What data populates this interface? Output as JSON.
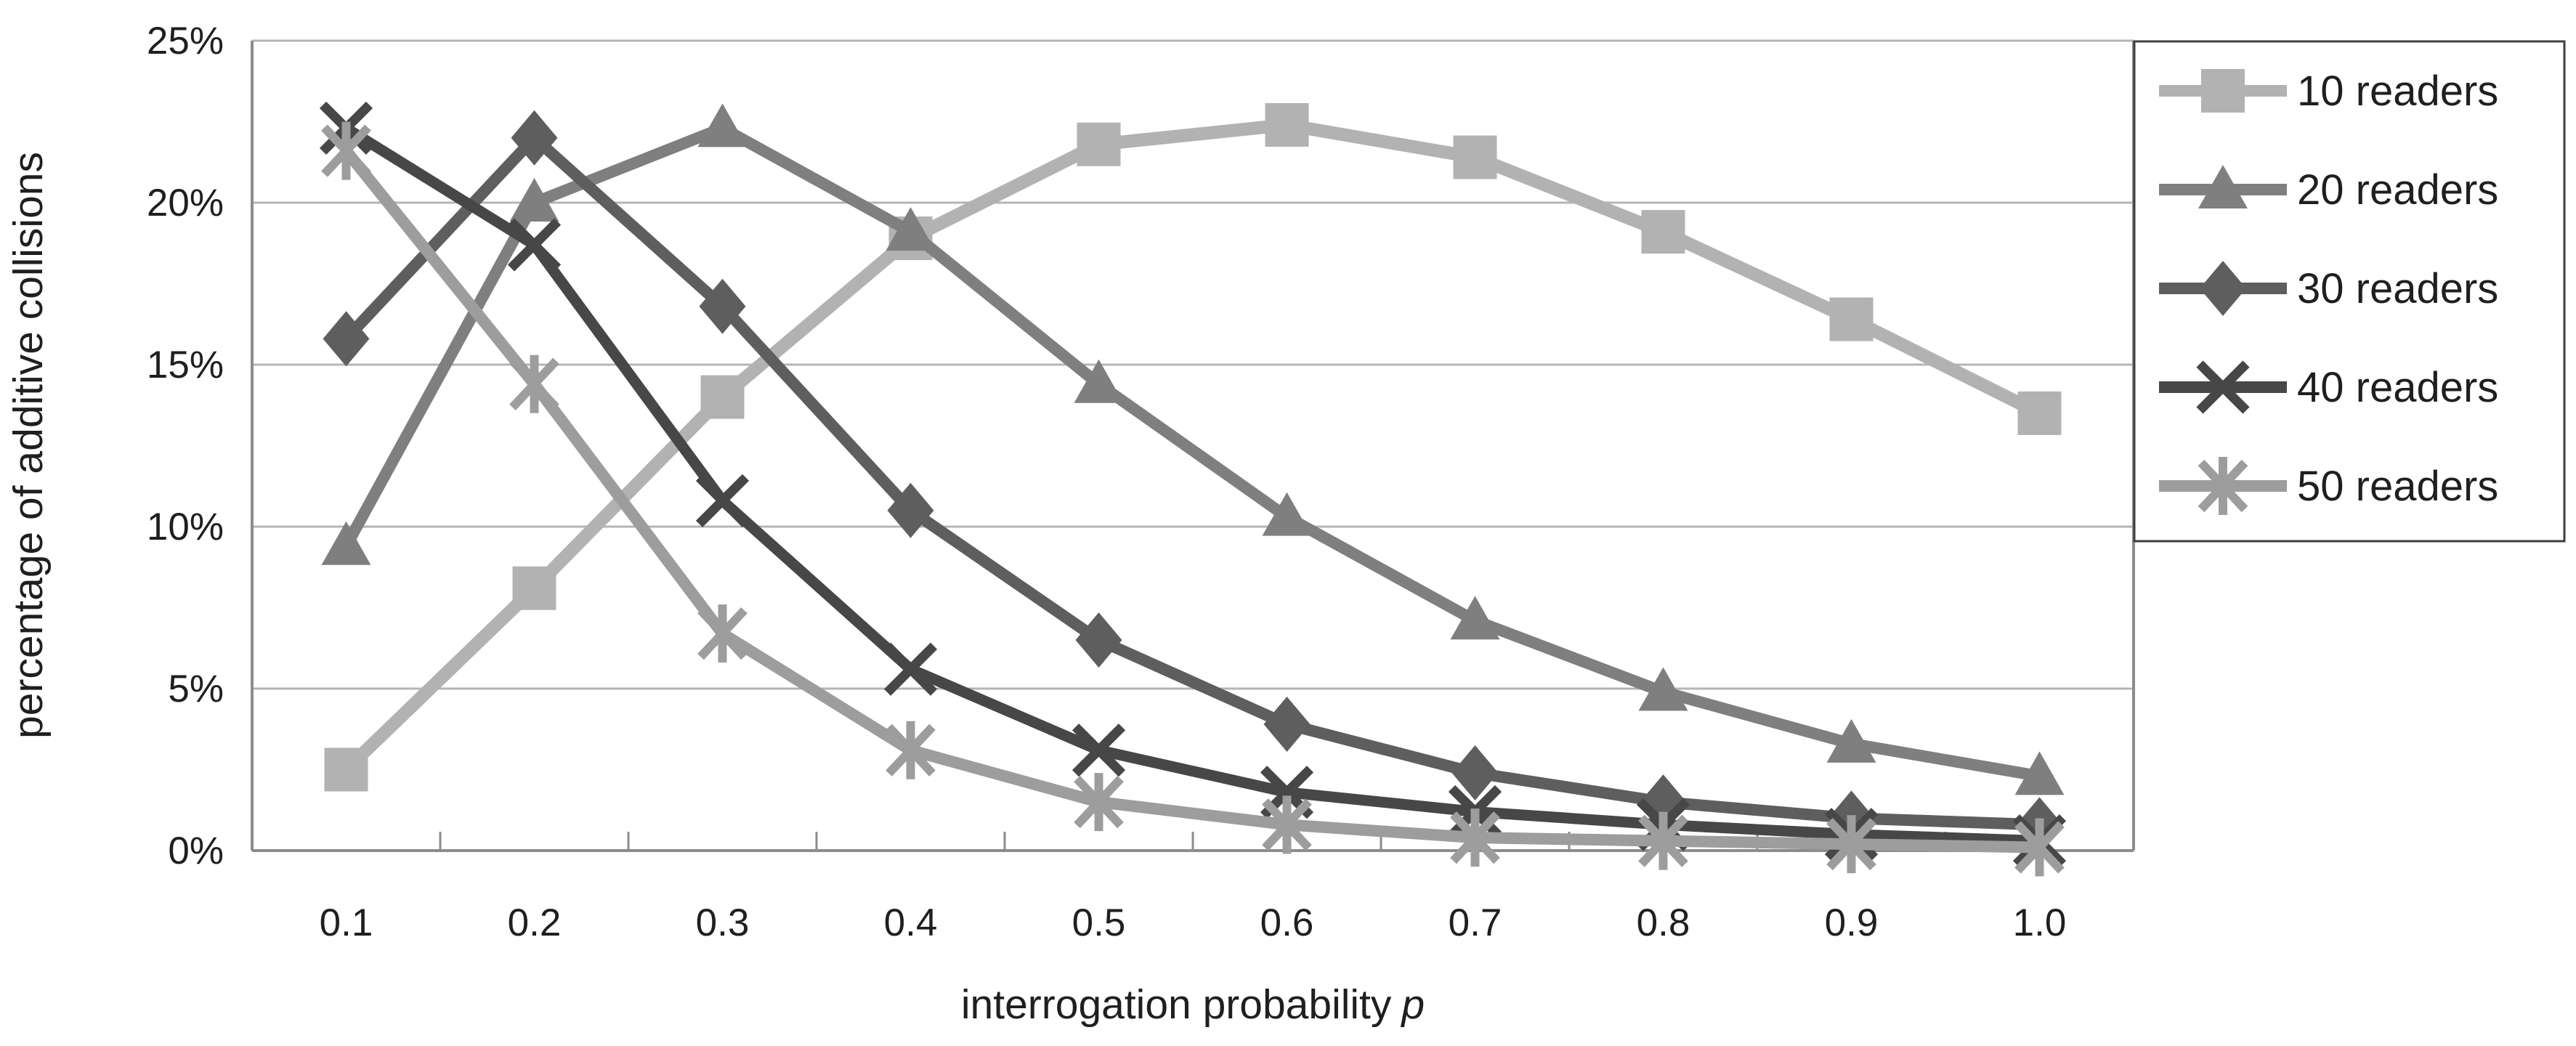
{
  "chart_data": {
    "type": "line",
    "title": "",
    "xlabel": "interrogation probability",
    "xlabel_italic_suffix": "p",
    "ylabel": "percentage of additive collisions",
    "categories": [
      0.1,
      0.2,
      0.3,
      0.4,
      0.5,
      0.6,
      0.7,
      0.8,
      0.9,
      1.0
    ],
    "x_tick_labels": [
      "0.1",
      "0.2",
      "0.3",
      "0.4",
      "0.5",
      "0.6",
      "0.7",
      "0.8",
      "0.9",
      "1.0"
    ],
    "y_ticks": [
      0,
      5,
      10,
      15,
      20,
      25
    ],
    "y_tick_labels": [
      "0%",
      "5%",
      "10%",
      "15%",
      "20%",
      "25%"
    ],
    "ylim": [
      0,
      25
    ],
    "grid": "horizontal",
    "legend_position": "right-top",
    "series": [
      {
        "name": "10 readers",
        "marker": "square",
        "color": "#b2b2b2",
        "line_width": 18,
        "values": [
          2.5,
          8.1,
          14.0,
          18.9,
          21.8,
          22.4,
          21.4,
          19.1,
          16.4,
          13.5
        ]
      },
      {
        "name": "20 readers",
        "marker": "triangle",
        "color": "#7f7f7f",
        "line_width": 16,
        "values": [
          9.4,
          20.0,
          22.3,
          19.1,
          14.4,
          10.3,
          7.1,
          4.9,
          3.3,
          2.3
        ]
      },
      {
        "name": "30 readers",
        "marker": "diamond",
        "color": "#5e5e5e",
        "line_width": 16,
        "values": [
          15.8,
          22.0,
          16.8,
          10.5,
          6.5,
          3.9,
          2.4,
          1.5,
          1.0,
          0.8
        ]
      },
      {
        "name": "40 readers",
        "marker": "x",
        "color": "#474747",
        "line_width": 15,
        "values": [
          22.3,
          18.7,
          10.8,
          5.6,
          3.1,
          1.8,
          1.2,
          0.8,
          0.5,
          0.3
        ]
      },
      {
        "name": "50 readers",
        "marker": "asterisk",
        "color": "#9d9d9d",
        "line_width": 16,
        "values": [
          21.6,
          14.4,
          6.7,
          3.1,
          1.5,
          0.8,
          0.4,
          0.3,
          0.2,
          0.1
        ]
      }
    ],
    "colors": {
      "background": "#ffffff",
      "gridline": "#b5b5b5",
      "axis": "#8c8c8c",
      "text": "#1f1f1f",
      "legend_border": "#3f3f3f"
    }
  }
}
